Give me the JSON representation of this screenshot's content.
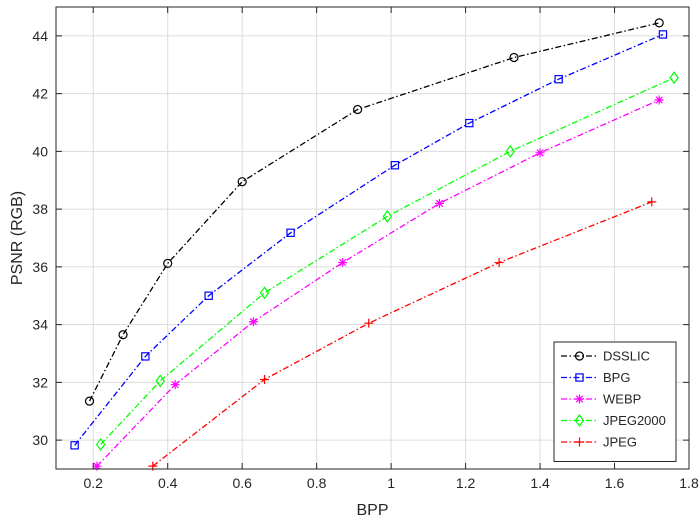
{
  "chart_data": {
    "type": "line",
    "title": "",
    "xlabel": "BPP",
    "ylabel": "PSNR (RGB)",
    "xlim": [
      0.1,
      1.8
    ],
    "ylim": [
      29,
      45
    ],
    "xticks": [
      0.2,
      0.4,
      0.6,
      0.8,
      1.0,
      1.2,
      1.4,
      1.6,
      1.8
    ],
    "xtick_labels": [
      "0.2",
      "0.4",
      "0.6",
      "0.8",
      "1",
      "1.2",
      "1.4",
      "1.6",
      "1.8"
    ],
    "yticks": [
      30,
      32,
      34,
      36,
      38,
      40,
      42,
      44
    ],
    "ytick_labels": [
      "30",
      "32",
      "34",
      "36",
      "38",
      "40",
      "42",
      "44"
    ],
    "grid": true,
    "legend_position": "bottom-right",
    "series": [
      {
        "name": "DSSLIC",
        "color": "#000000",
        "marker": "circle",
        "x": [
          0.19,
          0.28,
          0.4,
          0.6,
          0.91,
          1.33,
          1.72
        ],
        "y": [
          31.35,
          33.65,
          36.12,
          38.95,
          41.45,
          43.25,
          44.45
        ]
      },
      {
        "name": "BPG",
        "color": "#0000ff",
        "marker": "square",
        "x": [
          0.15,
          0.34,
          0.51,
          0.73,
          1.01,
          1.21,
          1.45,
          1.73
        ],
        "y": [
          29.82,
          32.9,
          35.0,
          37.18,
          39.52,
          40.98,
          42.5,
          44.05
        ]
      },
      {
        "name": "WEBP",
        "color": "#ff00ff",
        "marker": "asterisk",
        "x": [
          0.21,
          0.42,
          0.63,
          0.87,
          1.13,
          1.4,
          1.72
        ],
        "y": [
          29.1,
          31.92,
          34.1,
          36.15,
          38.2,
          39.95,
          41.78
        ]
      },
      {
        "name": "JPEG2000",
        "color": "#00ff00",
        "marker": "diamond",
        "x": [
          0.22,
          0.38,
          0.66,
          0.99,
          1.32,
          1.76
        ],
        "y": [
          29.85,
          32.05,
          35.1,
          37.75,
          40.0,
          42.55
        ]
      },
      {
        "name": "JPEG",
        "color": "#ff0000",
        "marker": "plus",
        "x": [
          0.36,
          0.66,
          0.94,
          1.29,
          1.7
        ],
        "y": [
          29.1,
          32.1,
          34.05,
          36.15,
          38.25
        ]
      }
    ]
  }
}
